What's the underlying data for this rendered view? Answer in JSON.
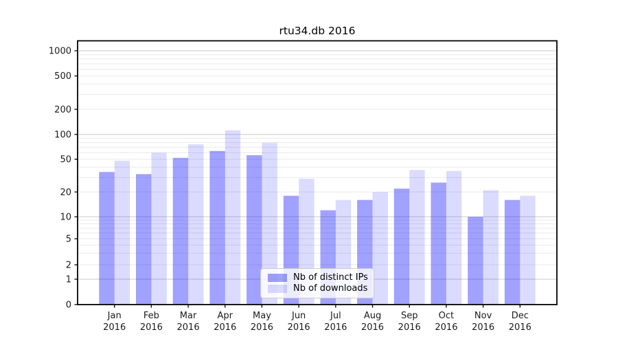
{
  "title": "rtu34.db 2016",
  "legend": {
    "items": [
      {
        "label": "Nb of distinct IPs",
        "color": "rgba(0,0,255,0.37)"
      },
      {
        "label": "Nb of downloads",
        "color": "rgba(0,0,255,0.14)"
      }
    ]
  },
  "chart_data": {
    "type": "bar",
    "title": "rtu34.db 2016",
    "categories": [
      "Jan 2016",
      "Feb 2016",
      "Mar 2016",
      "Apr 2016",
      "May 2016",
      "Jun 2016",
      "Jul 2016",
      "Aug 2016",
      "Sep 2016",
      "Oct 2016",
      "Nov 2016",
      "Dec 2016"
    ],
    "series": [
      {
        "name": "Nb of distinct IPs",
        "color": "rgba(0,0,255,0.37)",
        "values": [
          35,
          33,
          52,
          63,
          56,
          18,
          12,
          16,
          22,
          26,
          10,
          16
        ]
      },
      {
        "name": "Nb of downloads",
        "color": "rgba(0,0,255,0.14)",
        "values": [
          48,
          60,
          76,
          112,
          79,
          29,
          16,
          20,
          37,
          36,
          21,
          18
        ]
      }
    ],
    "xlabel": "",
    "ylabel": "",
    "yscale": "symlog",
    "ylim": [
      0,
      1300
    ],
    "yticks": [
      0,
      1,
      2,
      5,
      10,
      20,
      50,
      100,
      200,
      500,
      1000
    ],
    "grid": "horizontal, major and minor",
    "legend_position": "inside lower-center"
  }
}
